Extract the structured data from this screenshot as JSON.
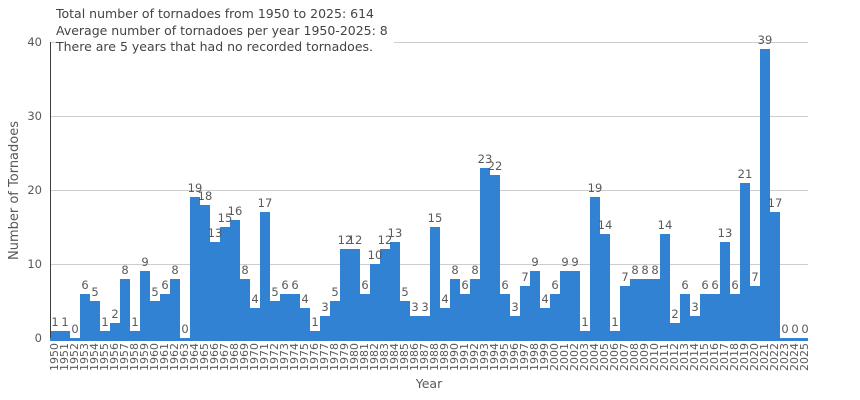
{
  "annotation": {
    "lines": [
      "Total number of tornadoes from 1950 to 2025: 614",
      "Average number of tornadoes per year 1950-2025: 8",
      "There are 5 years that had no recorded tornadoes."
    ]
  },
  "chart_data": {
    "type": "bar",
    "title": "",
    "xlabel": "Year",
    "ylabel": "Number of Tornadoes",
    "categories": [
      "1950",
      "1951",
      "1952",
      "1953",
      "1954",
      "1955",
      "1956",
      "1957",
      "1958",
      "1959",
      "1960",
      "1961",
      "1962",
      "1963",
      "1964",
      "1965",
      "1966",
      "1967",
      "1968",
      "1969",
      "1970",
      "1971",
      "1972",
      "1973",
      "1974",
      "1975",
      "1976",
      "1977",
      "1978",
      "1979",
      "1980",
      "1981",
      "1982",
      "1983",
      "1984",
      "1985",
      "1986",
      "1987",
      "1988",
      "1989",
      "1990",
      "1991",
      "1992",
      "1993",
      "1994",
      "1995",
      "1996",
      "1997",
      "1998",
      "1999",
      "2000",
      "2001",
      "2002",
      "2003",
      "2004",
      "2005",
      "2006",
      "2007",
      "2008",
      "2009",
      "2010",
      "2011",
      "2012",
      "2013",
      "2014",
      "2015",
      "2016",
      "2017",
      "2018",
      "2019",
      "2020",
      "2021",
      "2022",
      "2023",
      "2024",
      "2025"
    ],
    "values": [
      1,
      1,
      0,
      6,
      5,
      1,
      2,
      8,
      1,
      9,
      5,
      6,
      8,
      0,
      19,
      18,
      13,
      15,
      16,
      8,
      4,
      17,
      5,
      6,
      6,
      4,
      1,
      3,
      5,
      12,
      12,
      6,
      10,
      12,
      13,
      5,
      3,
      3,
      15,
      4,
      8,
      6,
      8,
      23,
      22,
      6,
      3,
      7,
      9,
      4,
      6,
      9,
      9,
      1,
      19,
      14,
      1,
      7,
      8,
      8,
      8,
      14,
      2,
      6,
      3,
      6,
      6,
      13,
      6,
      21,
      7,
      39,
      17,
      0,
      0,
      0
    ],
    "ylim": [
      0,
      40
    ],
    "yticks": [
      0,
      10,
      20,
      30,
      40
    ],
    "grid": true,
    "legend": "none",
    "data_labels": true,
    "bar_color": "#3282d4",
    "axis_line_color": "#3d3d3d",
    "gridline_color": "#cdcdcd",
    "tick_text_color": "#595959",
    "annotation_text_color": "#444444"
  }
}
